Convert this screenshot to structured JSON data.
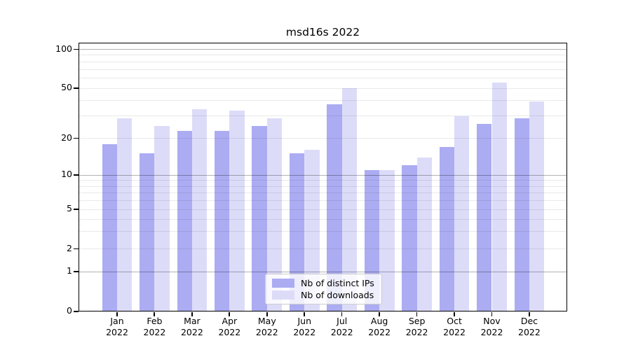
{
  "chart_data": {
    "type": "bar",
    "title": "msd16s 2022",
    "categories": [
      "Jan",
      "Feb",
      "Mar",
      "Apr",
      "May",
      "Jun",
      "Jul",
      "Aug",
      "Sep",
      "Oct",
      "Nov",
      "Dec"
    ],
    "year": "2022",
    "series": [
      {
        "name": "Nb of distinct IPs",
        "color": "#acacf2",
        "values": [
          18,
          15,
          23,
          23,
          25,
          15,
          37,
          11,
          12,
          17,
          26,
          29
        ]
      },
      {
        "name": "Nb of downloads",
        "color": "#dcdcf9",
        "values": [
          29,
          25,
          34,
          33,
          29,
          16,
          50,
          11,
          14,
          30,
          55,
          39
        ]
      }
    ],
    "xlabel": "",
    "ylabel": "",
    "y_axis": {
      "scale": "asinh-like (compressed log with 0 baseline)",
      "range": [
        0,
        100
      ],
      "ticks_top_to_bottom": [
        100,
        50,
        20,
        10,
        5,
        2,
        1,
        0
      ],
      "strong_gridlines": [
        1,
        10,
        100
      ],
      "light_gridlines": [
        2,
        5,
        20,
        50
      ],
      "minor_gridlines": [
        3,
        4,
        6,
        7,
        8,
        9,
        30,
        40,
        60,
        70,
        80,
        90
      ]
    },
    "legend": {
      "position": "lower center",
      "entries": [
        "Nb of distinct IPs",
        "Nb of downloads"
      ]
    },
    "grid": true
  },
  "colors": {
    "background": "#ffffff",
    "spine": "#000000",
    "major_grid": "#b3b3b3",
    "minor_grid": "#e9e9e9"
  }
}
